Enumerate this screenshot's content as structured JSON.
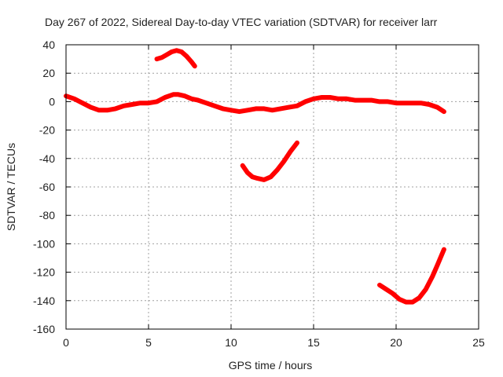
{
  "chart_data": {
    "type": "line",
    "title": "Day 267 of 2022, Sidereal Day-to-day VTEC variation (SDTVAR) for receiver larr",
    "xlabel": "GPS time / hours",
    "ylabel": "SDTVAR / TECUs",
    "xlim": [
      0,
      25
    ],
    "ylim": [
      -160,
      40
    ],
    "xticks": [
      0,
      5,
      10,
      15,
      20,
      25
    ],
    "yticks": [
      40,
      20,
      0,
      -20,
      -40,
      -60,
      -80,
      -100,
      -120,
      -140,
      -160
    ],
    "xtick_labels": [
      "0",
      "5",
      "10",
      "15",
      "20",
      "25"
    ],
    "ytick_labels": [
      "40",
      "20",
      "0",
      "-20",
      "-40",
      "-60",
      "-80",
      "-100",
      "-120",
      "-140",
      "-160"
    ],
    "grid": true,
    "series_color": "#ff0000",
    "grid_color": "#a0a0a0",
    "series": [
      {
        "name": "main",
        "x": [
          0.0,
          0.5,
          1.0,
          1.5,
          2.0,
          2.5,
          3.0,
          3.5,
          4.0,
          4.5,
          5.0,
          5.5,
          6.0,
          6.5,
          6.8,
          7.2,
          7.6,
          8.0,
          8.5,
          9.0,
          9.5,
          10.0,
          10.5,
          11.0,
          11.5,
          12.0,
          12.5,
          13.0,
          13.5,
          14.0,
          14.5,
          15.0,
          15.5,
          16.0,
          16.5,
          17.0,
          17.5,
          18.0,
          18.5,
          19.0,
          19.5,
          20.0,
          20.5,
          21.0,
          21.5,
          22.0,
          22.5,
          22.9
        ],
        "y": [
          4,
          2,
          -1,
          -4,
          -6,
          -6,
          -5,
          -3,
          -2,
          -1,
          -1,
          0,
          3,
          5,
          5,
          4,
          2,
          1,
          -1,
          -3,
          -5,
          -6,
          -7,
          -6,
          -5,
          -5,
          -6,
          -5,
          -4,
          -3,
          0,
          2,
          3,
          3,
          2,
          2,
          1,
          1,
          1,
          0,
          0,
          -1,
          -1,
          -1,
          -1,
          -2,
          -4,
          -7
        ]
      },
      {
        "name": "segment-2",
        "x": [
          5.5,
          5.8,
          6.1,
          6.4,
          6.7,
          7.0,
          7.3,
          7.6,
          7.8
        ],
        "y": [
          30,
          31,
          33,
          35,
          36,
          35,
          32,
          28,
          25
        ]
      },
      {
        "name": "segment-3",
        "x": [
          10.7,
          11.0,
          11.3,
          11.6,
          12.0,
          12.4,
          12.8,
          13.2,
          13.6,
          14.0
        ],
        "y": [
          -45,
          -50,
          -53,
          -54,
          -55,
          -53,
          -48,
          -42,
          -35,
          -29
        ]
      },
      {
        "name": "segment-4",
        "x": [
          19.0,
          19.4,
          19.8,
          20.2,
          20.6,
          21.0,
          21.4,
          21.8,
          22.2,
          22.5,
          22.9
        ],
        "y": [
          -129,
          -132,
          -135,
          -139,
          -141,
          -141,
          -138,
          -132,
          -123,
          -115,
          -104
        ]
      }
    ]
  }
}
